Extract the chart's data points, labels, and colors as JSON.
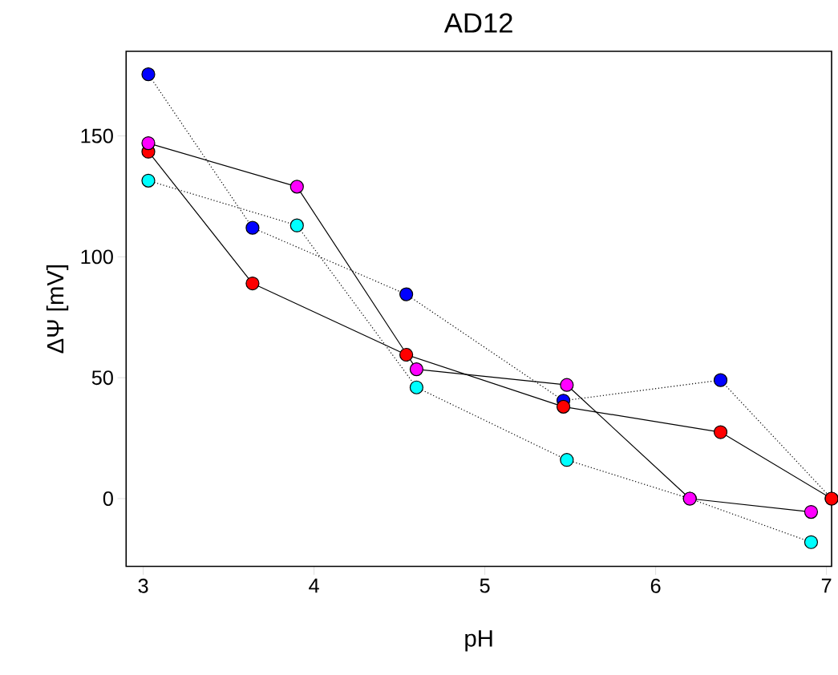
{
  "chart_data": {
    "type": "line",
    "title": "AD12",
    "xlabel": "pH",
    "ylabel": "ΔΨ [mV]",
    "xlim": [
      2.9,
      7.03
    ],
    "ylim": [
      -28,
      185
    ],
    "xticks": [
      3,
      4,
      5,
      6,
      7
    ],
    "yticks": [
      0,
      50,
      100,
      150
    ],
    "marker": "circle",
    "series": [
      {
        "color": "#0000ff",
        "line_style": "dotted",
        "x": [
          3.03,
          3.64,
          4.54,
          5.46,
          6.38,
          7.03
        ],
        "values": [
          175.5,
          112,
          84.5,
          40.5,
          49,
          0
        ]
      },
      {
        "color": "#00ffff",
        "line_style": "dotted",
        "x": [
          3.03,
          3.9,
          4.6,
          5.48,
          6.2,
          6.91
        ],
        "values": [
          131.5,
          113,
          46,
          16,
          0,
          -18
        ]
      },
      {
        "color": "#ff0000",
        "line_style": "solid",
        "x": [
          3.03,
          3.64,
          4.54,
          5.46,
          6.38,
          7.03
        ],
        "values": [
          143.5,
          89,
          59.5,
          38,
          27.5,
          0
        ]
      },
      {
        "color": "#ff00ff",
        "line_style": "solid",
        "x": [
          3.03,
          3.9,
          4.6,
          5.48,
          6.2,
          6.91
        ],
        "values": [
          147,
          129,
          53.5,
          47,
          0,
          -5.5
        ]
      }
    ]
  }
}
